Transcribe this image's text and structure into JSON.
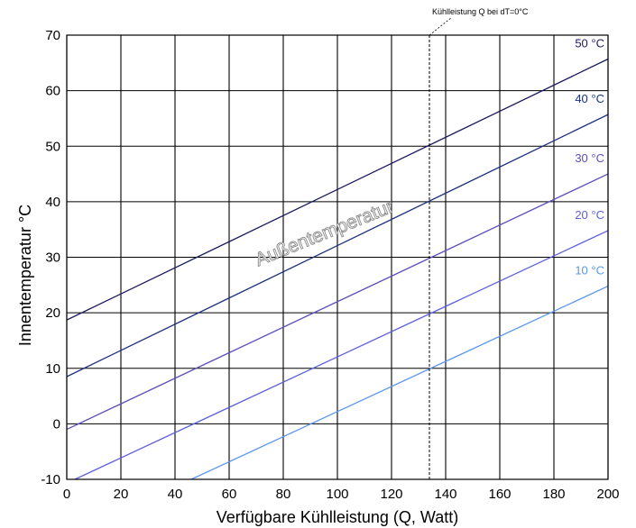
{
  "chart_data": {
    "type": "line",
    "xlabel": "Verfügbare Kühlleistung (Q, Watt)",
    "ylabel": "Innentemperatur °C",
    "xlim": [
      0,
      200
    ],
    "ylim": [
      -10,
      70
    ],
    "x_ticks": [
      0,
      20,
      40,
      60,
      80,
      100,
      120,
      140,
      160,
      180,
      200
    ],
    "y_ticks": [
      -10,
      0,
      10,
      20,
      30,
      40,
      50,
      60,
      70
    ],
    "grid": true,
    "series": [
      {
        "name": "50 °C",
        "color": "#1a1a5e",
        "points": [
          [
            0,
            18.7
          ],
          [
            200,
            65.7
          ]
        ]
      },
      {
        "name": "40 °C",
        "color": "#1c2f7e",
        "points": [
          [
            0,
            8.5
          ],
          [
            200,
            55.7
          ]
        ]
      },
      {
        "name": "30 °C",
        "color": "#5a4fbf",
        "points": [
          [
            0,
            -1.0
          ],
          [
            200,
            45.0
          ]
        ]
      },
      {
        "name": "20 °C",
        "color": "#5c5fe0",
        "points": [
          [
            3,
            -10.0
          ],
          [
            200,
            34.8
          ]
        ]
      },
      {
        "name": "10 °C",
        "color": "#5a96f0",
        "points": [
          [
            46,
            -10.0
          ],
          [
            200,
            24.8
          ]
        ]
      }
    ],
    "annotations": {
      "curve_label": "Außentemperatur",
      "reference_line": {
        "x": 134,
        "label": "Kühlleistung Q bei dT=0°C"
      }
    }
  }
}
